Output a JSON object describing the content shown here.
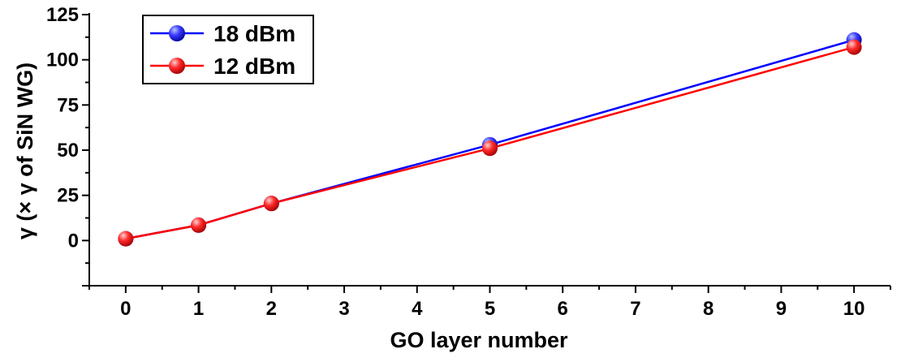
{
  "chart_data": {
    "type": "line",
    "title": "",
    "xlabel": "GO layer number",
    "ylabel": "γ (× γ of SiN WG)",
    "x": [
      0,
      1,
      2,
      5,
      10
    ],
    "series": [
      {
        "name": "18 dBm",
        "color": "#0000ff",
        "marker_color": "#2020e0",
        "values": [
          1,
          8.5,
          20.5,
          53,
          111
        ]
      },
      {
        "name": "12 dBm",
        "color": "#ff0000",
        "marker_color": "#ee1010",
        "values": [
          1,
          8.5,
          20.5,
          51,
          107
        ]
      }
    ],
    "xlim": [
      -0.5,
      10.5
    ],
    "ylim": [
      -25,
      125
    ],
    "xticks": [
      0,
      1,
      2,
      3,
      4,
      5,
      6,
      7,
      8,
      9,
      10
    ],
    "yticks": [
      0,
      25,
      50,
      75,
      100,
      125
    ],
    "grid": false,
    "legend_position": "top-left"
  }
}
